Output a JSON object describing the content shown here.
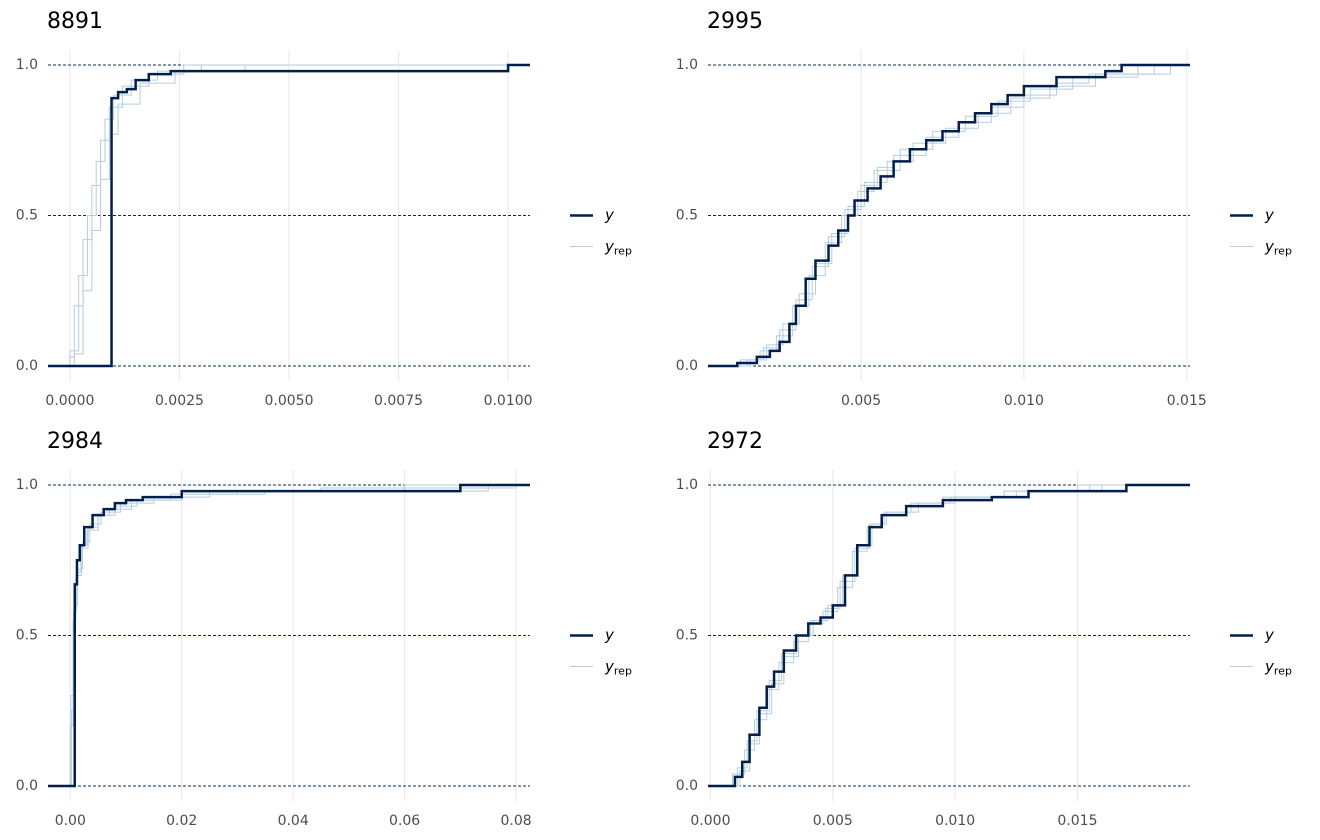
{
  "chart_data": [
    {
      "type": "ecdf",
      "title": "8891",
      "xlim": [
        -0.0005,
        0.0105
      ],
      "xticks": [
        {
          "value": 0,
          "label": "0.0000"
        },
        0.0025,
        {
          "value": 0.005,
          "label": "0.0050"
        },
        0.0075,
        {
          "value": 0.01,
          "label": "0.0100"
        }
      ],
      "ylim": [
        -0.05,
        1.05
      ],
      "yticks": [
        {
          "value": 0,
          "label": "0.0"
        },
        0.5,
        {
          "value": 1,
          "label": "1.0"
        }
      ],
      "series": [
        {
          "name": "y",
          "color": "#011f4b",
          "x": [
            -0.0005,
            0.00095,
            0.0011,
            0.0013,
            0.0015,
            0.0018,
            0.0023,
            0.01
          ],
          "values": [
            0,
            0.89,
            0.91,
            0.92,
            0.95,
            0.97,
            0.98,
            1.0
          ]
        },
        {
          "name": "yrep",
          "color": "#b3cde0",
          "draws": [
            {
              "x": [
                -0.0005,
                0.0,
                0.0002,
                0.0004,
                0.0006,
                0.0008,
                0.001,
                0.0014,
                0.002,
                0.003
              ],
              "values": [
                0,
                0.05,
                0.3,
                0.5,
                0.68,
                0.82,
                0.9,
                0.95,
                0.98,
                1.0
              ]
            },
            {
              "x": [
                -0.0005,
                0.0001,
                0.0003,
                0.0005,
                0.0007,
                0.0009,
                0.0011,
                0.0016,
                0.0024,
                0.004
              ],
              "values": [
                0,
                0.04,
                0.25,
                0.45,
                0.62,
                0.77,
                0.87,
                0.94,
                0.98,
                1.0
              ]
            },
            {
              "x": [
                -0.0005,
                0.0,
                0.0001,
                0.0003,
                0.0005,
                0.0007,
                0.0009,
                0.0012,
                0.0018,
                0.0026
              ],
              "values": [
                0,
                0.03,
                0.2,
                0.42,
                0.6,
                0.75,
                0.86,
                0.93,
                0.97,
                1.0
              ]
            }
          ]
        }
      ]
    },
    {
      "type": "ecdf",
      "title": "2995",
      "xlim": [
        0.0003,
        0.0151
      ],
      "xticks": [
        0.005,
        {
          "value": 0.01,
          "label": "0.010"
        },
        0.015
      ],
      "ylim": [
        -0.05,
        1.05
      ],
      "yticks": [
        {
          "value": 0,
          "label": "0.0"
        },
        0.5,
        {
          "value": 1,
          "label": "1.0"
        }
      ],
      "series": [
        {
          "name": "y",
          "color": "#011f4b",
          "x": [
            0.0003,
            0.0012,
            0.0018,
            0.0022,
            0.0025,
            0.0028,
            0.003,
            0.0033,
            0.0036,
            0.004,
            0.0043,
            0.0046,
            0.0048,
            0.0052,
            0.0056,
            0.006,
            0.0065,
            0.007,
            0.0075,
            0.008,
            0.0085,
            0.009,
            0.0095,
            0.01,
            0.011,
            0.0125,
            0.013
          ],
          "values": [
            0,
            0.01,
            0.03,
            0.05,
            0.08,
            0.14,
            0.2,
            0.29,
            0.35,
            0.4,
            0.45,
            0.5,
            0.55,
            0.59,
            0.63,
            0.68,
            0.72,
            0.75,
            0.78,
            0.81,
            0.84,
            0.87,
            0.9,
            0.93,
            0.96,
            0.98,
            1.0
          ]
        },
        {
          "name": "yrep",
          "color": "#b3cde0",
          "draws": [
            {
              "x": [
                0.0003,
                0.0015,
                0.002,
                0.0025,
                0.003,
                0.0035,
                0.004,
                0.0045,
                0.005,
                0.0055,
                0.006,
                0.007,
                0.008,
                0.009,
                0.01,
                0.011,
                0.012,
                0.014
              ],
              "values": [
                0,
                0.02,
                0.06,
                0.12,
                0.22,
                0.33,
                0.43,
                0.52,
                0.6,
                0.66,
                0.7,
                0.76,
                0.81,
                0.86,
                0.9,
                0.94,
                0.97,
                1.0
              ]
            },
            {
              "x": [
                0.0003,
                0.0013,
                0.0019,
                0.0024,
                0.0029,
                0.0034,
                0.0039,
                0.0044,
                0.0049,
                0.0054,
                0.0062,
                0.0072,
                0.0082,
                0.0092,
                0.0102,
                0.0115,
                0.0135
              ],
              "values": [
                0,
                0.02,
                0.05,
                0.1,
                0.2,
                0.3,
                0.41,
                0.5,
                0.58,
                0.65,
                0.72,
                0.78,
                0.83,
                0.88,
                0.92,
                0.96,
                1.0
              ]
            },
            {
              "x": [
                0.0003,
                0.0016,
                0.0021,
                0.0026,
                0.0031,
                0.0036,
                0.0041,
                0.0046,
                0.0051,
                0.0058,
                0.0066,
                0.0076,
                0.0086,
                0.0096,
                0.0108,
                0.0122,
                0.0145
              ],
              "values": [
                0,
                0.02,
                0.07,
                0.14,
                0.24,
                0.34,
                0.44,
                0.53,
                0.61,
                0.68,
                0.74,
                0.79,
                0.84,
                0.89,
                0.93,
                0.97,
                1.0
              ]
            }
          ]
        }
      ]
    },
    {
      "type": "ecdf",
      "title": "2984",
      "xlim": [
        -0.004,
        0.0825
      ],
      "xticks": [
        {
          "value": 0,
          "label": "0.00"
        },
        0.02,
        0.04,
        0.06,
        0.08
      ],
      "ylim": [
        -0.05,
        1.05
      ],
      "yticks": [
        {
          "value": 0,
          "label": "0.0"
        },
        0.5,
        {
          "value": 1,
          "label": "1.0"
        }
      ],
      "series": [
        {
          "name": "y",
          "color": "#011f4b",
          "x": [
            -0.004,
            0.0008,
            0.0012,
            0.0017,
            0.0025,
            0.004,
            0.006,
            0.008,
            0.01,
            0.013,
            0.02,
            0.07
          ],
          "values": [
            0,
            0.67,
            0.75,
            0.8,
            0.86,
            0.9,
            0.92,
            0.94,
            0.95,
            0.96,
            0.98,
            1.0
          ]
        },
        {
          "name": "yrep",
          "color": "#b3cde0",
          "draws": [
            {
              "x": [
                -0.004,
                0.0,
                0.0005,
                0.001,
                0.002,
                0.003,
                0.005,
                0.008,
                0.012,
                0.02,
                0.035,
                0.075
              ],
              "values": [
                0,
                0.2,
                0.55,
                0.7,
                0.8,
                0.85,
                0.9,
                0.93,
                0.95,
                0.97,
                0.98,
                1.0
              ]
            },
            {
              "x": [
                -0.004,
                0.0002,
                0.0007,
                0.0013,
                0.0022,
                0.0035,
                0.0055,
                0.009,
                0.015,
                0.025,
                0.045,
                0.08
              ],
              "values": [
                0,
                0.25,
                0.6,
                0.72,
                0.81,
                0.87,
                0.91,
                0.94,
                0.96,
                0.98,
                0.99,
                1.0
              ]
            },
            {
              "x": [
                -0.004,
                0.0001,
                0.0006,
                0.0011,
                0.0019,
                0.0032,
                0.005,
                0.007,
                0.011,
                0.018,
                0.03,
                0.06
              ],
              "values": [
                0,
                0.3,
                0.58,
                0.71,
                0.79,
                0.86,
                0.9,
                0.92,
                0.95,
                0.97,
                0.98,
                1.0
              ]
            }
          ]
        }
      ]
    },
    {
      "type": "ecdf",
      "title": "2972",
      "xlim": [
        -0.0001,
        0.0196
      ],
      "xticks": [
        {
          "value": 0,
          "label": "0.000"
        },
        0.005,
        {
          "value": 0.01,
          "label": "0.010"
        },
        0.015
      ],
      "ylim": [
        -0.05,
        1.05
      ],
      "yticks": [
        {
          "value": 0,
          "label": "0.0"
        },
        0.5,
        {
          "value": 1,
          "label": "1.0"
        }
      ],
      "series": [
        {
          "name": "y",
          "color": "#011f4b",
          "x": [
            -0.0001,
            0.001,
            0.0013,
            0.0016,
            0.002,
            0.0023,
            0.0026,
            0.003,
            0.0035,
            0.004,
            0.0045,
            0.005,
            0.0055,
            0.006,
            0.0065,
            0.007,
            0.008,
            0.0095,
            0.0115,
            0.013,
            0.017
          ],
          "values": [
            0,
            0.03,
            0.08,
            0.17,
            0.26,
            0.33,
            0.38,
            0.45,
            0.5,
            0.54,
            0.56,
            0.6,
            0.7,
            0.8,
            0.86,
            0.9,
            0.93,
            0.95,
            0.96,
            0.98,
            1.0
          ]
        },
        {
          "name": "yrep",
          "color": "#b3cde0",
          "draws": [
            {
              "x": [
                -0.0001,
                0.0012,
                0.0016,
                0.002,
                0.0025,
                0.003,
                0.0036,
                0.0042,
                0.0048,
                0.0054,
                0.006,
                0.0066,
                0.0072,
                0.0085,
                0.01,
                0.012,
                0.015
              ],
              "values": [
                0,
                0.05,
                0.14,
                0.24,
                0.34,
                0.43,
                0.5,
                0.55,
                0.6,
                0.7,
                0.8,
                0.87,
                0.91,
                0.94,
                0.96,
                0.98,
                1.0
              ]
            },
            {
              "x": [
                -0.0001,
                0.0009,
                0.0014,
                0.0018,
                0.0023,
                0.0028,
                0.0034,
                0.004,
                0.0046,
                0.0052,
                0.0058,
                0.0064,
                0.007,
                0.008,
                0.0095,
                0.0125,
                0.016
              ],
              "values": [
                0,
                0.04,
                0.12,
                0.22,
                0.32,
                0.41,
                0.48,
                0.54,
                0.58,
                0.66,
                0.78,
                0.86,
                0.9,
                0.93,
                0.96,
                0.98,
                1.0
              ]
            },
            {
              "x": [
                -0.0001,
                0.0011,
                0.0015,
                0.0019,
                0.0024,
                0.0029,
                0.0035,
                0.0041,
                0.0047,
                0.0053,
                0.0059,
                0.0065,
                0.0071,
                0.0082,
                0.0098,
                0.012,
                0.0155
              ],
              "values": [
                0,
                0.06,
                0.15,
                0.25,
                0.35,
                0.44,
                0.5,
                0.55,
                0.59,
                0.68,
                0.79,
                0.87,
                0.91,
                0.94,
                0.96,
                0.98,
                1.0
              ]
            }
          ]
        }
      ]
    }
  ]
}
